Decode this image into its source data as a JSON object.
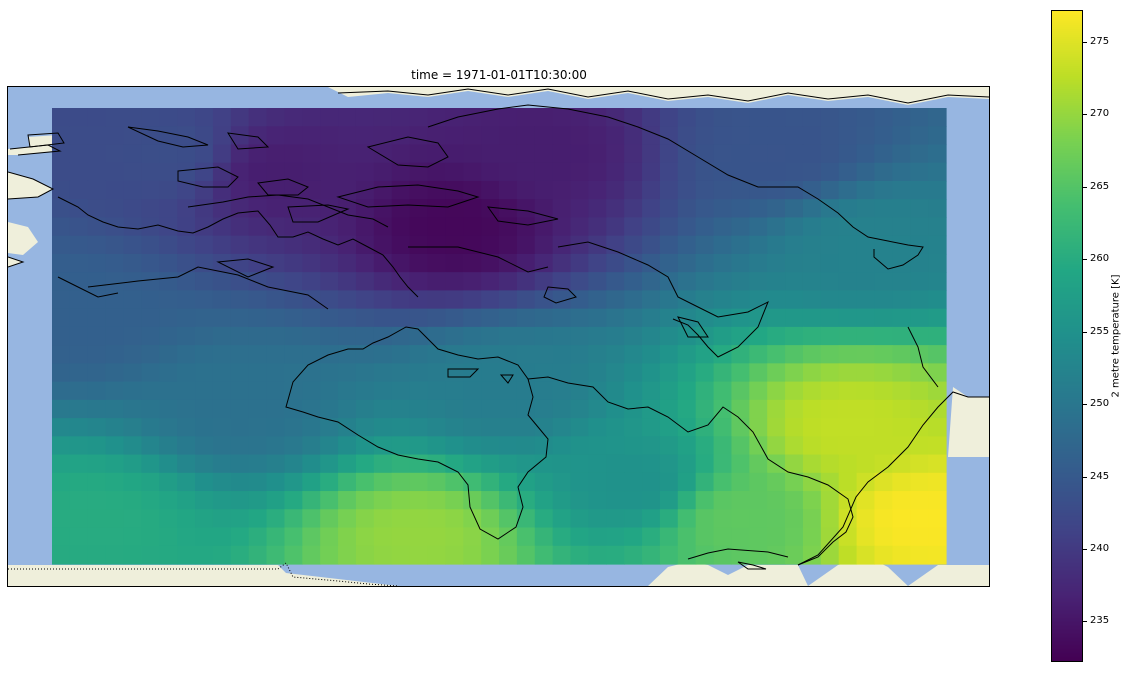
{
  "chart_data": {
    "type": "heatmap",
    "title": "time = 1971-01-01T10:30:00",
    "colorbar": {
      "label": "2 metre temperature [K]",
      "colormap": "viridis",
      "vmin": 232.2,
      "vmax": 277.2,
      "ticks": [
        235,
        240,
        245,
        250,
        255,
        260,
        265,
        270,
        275
      ],
      "tick_labels": [
        "235",
        "240",
        "245",
        "250",
        "255",
        "260",
        "265",
        "270",
        "275"
      ]
    },
    "grid": {
      "columns": 50,
      "rows": 25,
      "description": "2 m temperature field over northern Canada / Hudson Bay region; coldest (~233 K) near the high Arctic islands, warmest (~275 K) toward the south-east",
      "anchors": [
        {
          "col": 22,
          "row": 6,
          "value": 233
        },
        {
          "col": 12,
          "row": 3,
          "value": 236
        },
        {
          "col": 27,
          "row": 2,
          "value": 236
        },
        {
          "col": 6,
          "row": 2,
          "value": 243
        },
        {
          "col": 40,
          "row": 2,
          "value": 244
        },
        {
          "col": 1,
          "row": 11,
          "value": 246
        },
        {
          "col": 45,
          "row": 7,
          "value": 252
        },
        {
          "col": 25,
          "row": 15,
          "value": 251
        },
        {
          "col": 10,
          "row": 16,
          "value": 249
        },
        {
          "col": 20,
          "row": 23,
          "value": 270
        },
        {
          "col": 44,
          "row": 17,
          "value": 273
        },
        {
          "col": 48,
          "row": 22,
          "value": 277
        },
        {
          "col": 2,
          "row": 22,
          "value": 260
        },
        {
          "col": 38,
          "row": 22,
          "value": 266
        },
        {
          "col": 32,
          "row": 20,
          "value": 255
        }
      ]
    },
    "map": {
      "ocean_color": "#97b6e1",
      "land_color": "#efefdb",
      "coastline_color": "#000000"
    }
  }
}
